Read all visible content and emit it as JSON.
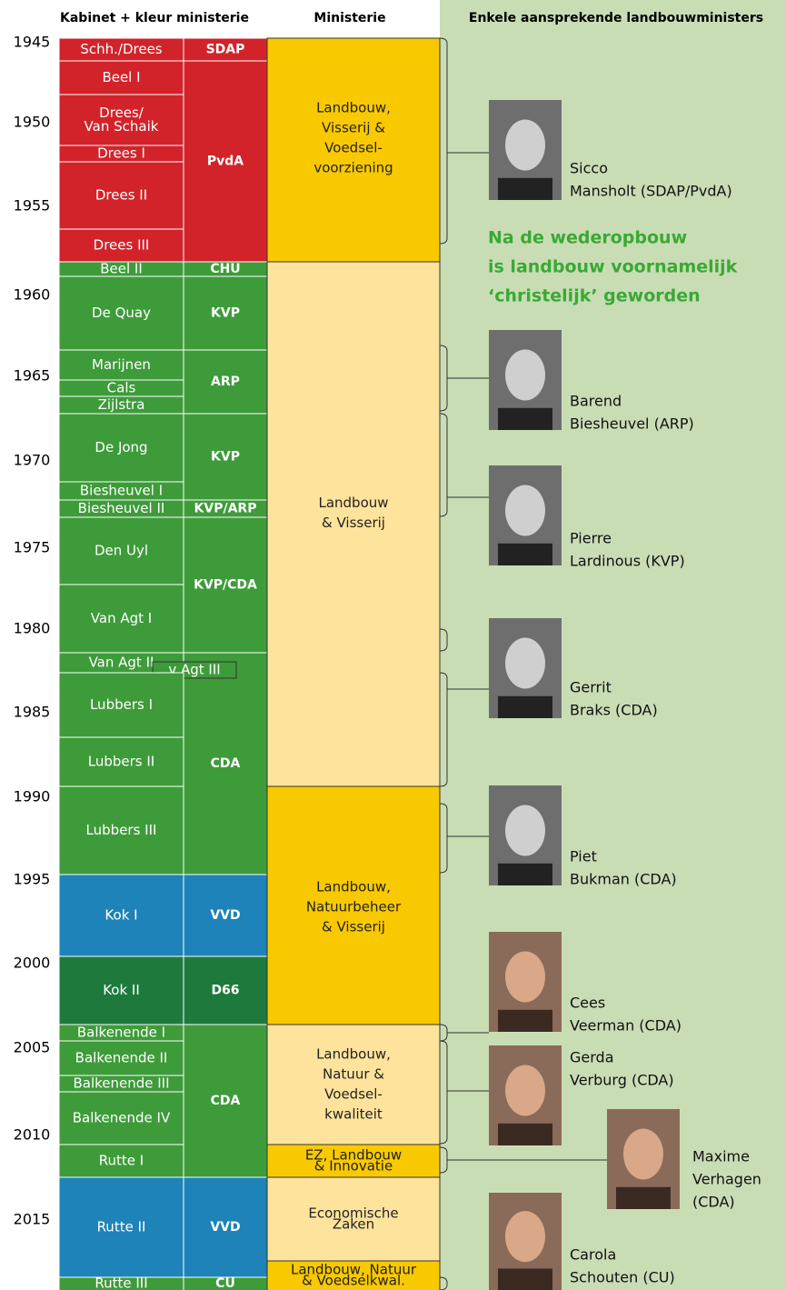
{
  "header": {
    "cabinets": "Kabinet + kleur ministerie",
    "ministry": "Ministerie",
    "ministers": "Enkele aansprekende landbouwministers"
  },
  "years": [
    "1945",
    "1950",
    "1955",
    "1960",
    "1965",
    "1970",
    "1975",
    "1980",
    "1985",
    "1990",
    "1995",
    "2000",
    "2005",
    "2010",
    "2015"
  ],
  "cabinets": [
    [
      "Schh./Drees"
    ],
    [
      "Beel I"
    ],
    [
      "Drees/",
      "Van Schaik"
    ],
    [
      "Drees I"
    ],
    [
      "Drees II"
    ],
    [
      "Drees III"
    ],
    [
      "Beel II"
    ],
    [
      "De Quay"
    ],
    [
      "Marijnen"
    ],
    [
      "Cals"
    ],
    [
      "Zijlstra"
    ],
    [
      "De Jong"
    ],
    [
      "Biesheuvel I"
    ],
    [
      "Biesheuvel II"
    ],
    [
      "Den Uyl"
    ],
    [
      "Van Agt I"
    ],
    [
      "Van Agt II"
    ],
    [
      "v Agt III"
    ],
    [
      "Lubbers I"
    ],
    [
      "Lubbers II"
    ],
    [
      "Lubbers III"
    ],
    [
      "Kok I"
    ],
    [
      "Kok II"
    ],
    [
      "Balkenende I"
    ],
    [
      "Balkenende II"
    ],
    [
      "Balkenende III"
    ],
    [
      "Balkenende IV"
    ],
    [
      "Rutte I"
    ],
    [
      "Rutte II"
    ],
    [
      "Rutte III"
    ]
  ],
  "parties": [
    "SDAP",
    "PvdA",
    "CHU",
    "KVP",
    "ARP",
    "KVP",
    "KVP/ARP",
    "KVP/CDA",
    "CDA",
    "VVD",
    "D66",
    "CDA",
    "VVD",
    "CU"
  ],
  "ministries": [
    [
      "Landbouw,",
      "Visserij &",
      "Voedsel-",
      "voorziening"
    ],
    [
      "Landbouw",
      "& Visserij"
    ],
    [
      "Landbouw,",
      "Natuurbeheer",
      "& Visserij"
    ],
    [
      "Landbouw,",
      "Natuur &",
      "Voedsel-",
      "kwaliteit"
    ],
    [
      "EZ, Landbouw",
      "& Innovatie"
    ],
    [
      "Economische",
      "Zaken"
    ],
    [
      "Landbouw, Natuur",
      "& Voedselkwal."
    ]
  ],
  "note": [
    "Na de wederopbouw",
    "is landbouw voornamelijk",
    "‘christelijk’ geworden"
  ],
  "ministers": [
    [
      "Sicco",
      "Mansholt (SDAP/PvdA)"
    ],
    [
      "Barend",
      "Biesheuvel (ARP)"
    ],
    [
      "Pierre",
      "Lardinous (KVP)"
    ],
    [
      "Gerrit",
      "Braks (CDA)"
    ],
    [
      "Piet",
      "Bukman (CDA)"
    ],
    [
      "Cees",
      "Veerman (CDA)"
    ],
    [
      "Gerda",
      "Verburg (CDA)"
    ],
    [
      "Maxime",
      "Verhagen",
      "(CDA)"
    ],
    [
      "Carola",
      "Schouten (CU)"
    ]
  ]
}
